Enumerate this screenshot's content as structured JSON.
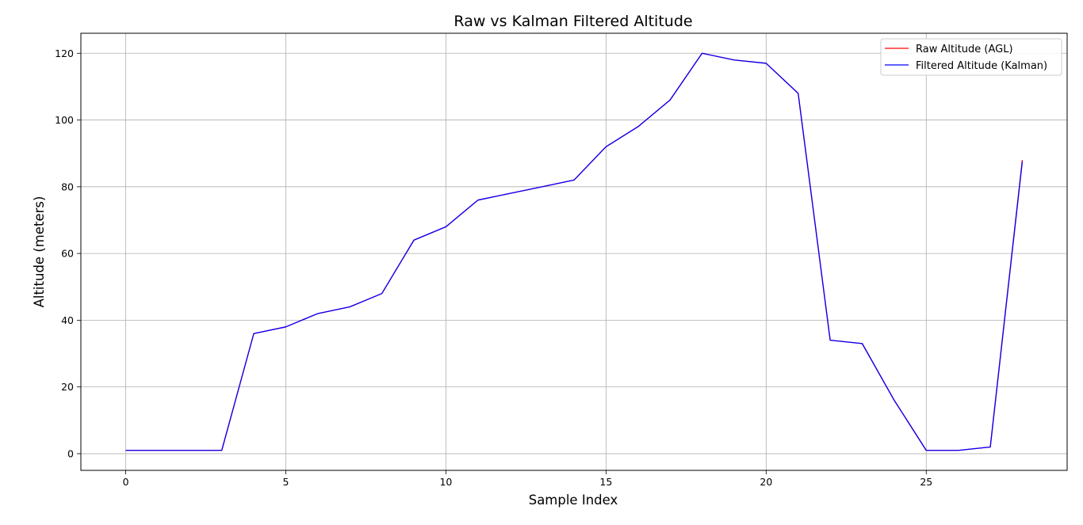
{
  "chart_data": {
    "type": "line",
    "title": "Raw vs Kalman Filtered Altitude",
    "xlabel": "Sample Index",
    "ylabel": "Altitude (meters)",
    "xlim": [
      -1.4,
      29.4
    ],
    "ylim": [
      -5,
      126
    ],
    "xticks": [
      0,
      5,
      10,
      15,
      20,
      25
    ],
    "yticks": [
      0,
      20,
      40,
      60,
      80,
      100,
      120
    ],
    "grid": true,
    "legend_position": "top-right",
    "x": [
      0,
      1,
      2,
      3,
      4,
      5,
      6,
      7,
      8,
      9,
      10,
      11,
      12,
      13,
      14,
      15,
      16,
      17,
      18,
      19,
      20,
      21,
      22,
      23,
      24,
      25,
      26,
      27,
      28
    ],
    "series": [
      {
        "name": "Raw Altitude (AGL)",
        "color": "#ff0000",
        "values": [
          1,
          1,
          1,
          1,
          36,
          38,
          42,
          44,
          48,
          64,
          68,
          76,
          78,
          80,
          82,
          92,
          98,
          106,
          120,
          118,
          117,
          108,
          34,
          33,
          16,
          1,
          1,
          2,
          88
        ]
      },
      {
        "name": "Filtered Altitude (Kalman)",
        "color": "#0000ff",
        "values": [
          1,
          1,
          1,
          1,
          36,
          38,
          42,
          44,
          48,
          64,
          68,
          76,
          78,
          80,
          82,
          92,
          98,
          106,
          120,
          118,
          117,
          108,
          34,
          33,
          16,
          1,
          1,
          2,
          87.5
        ]
      }
    ]
  }
}
